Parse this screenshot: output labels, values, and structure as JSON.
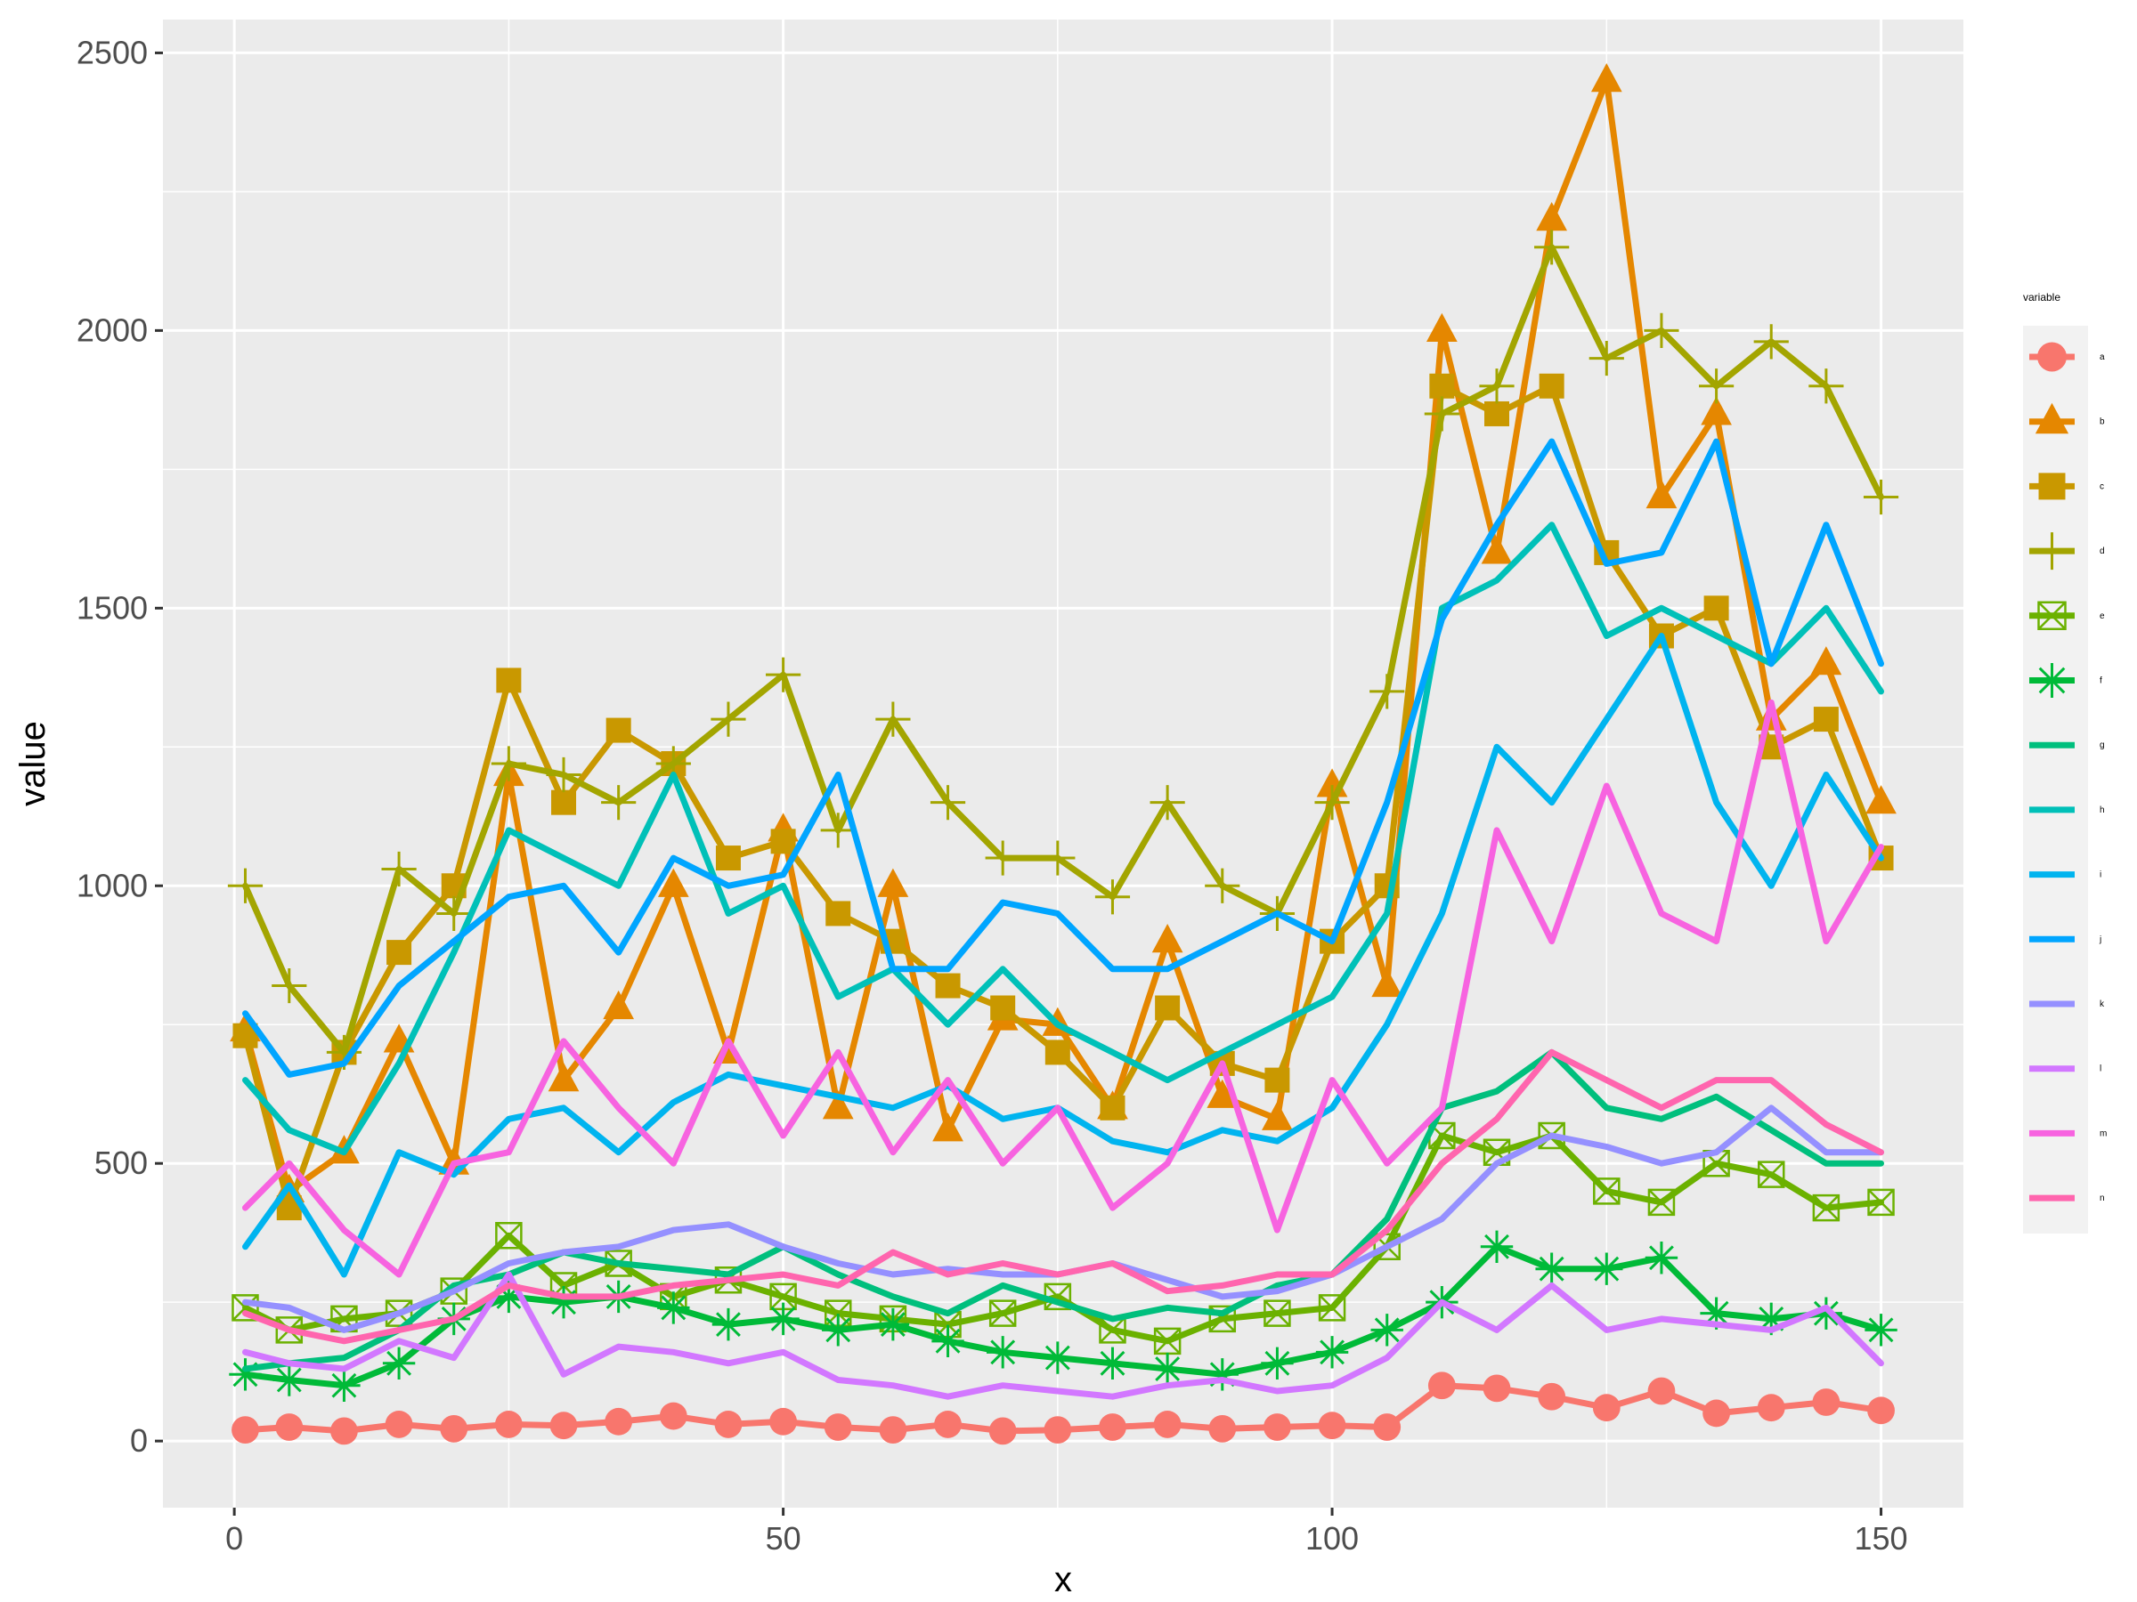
{
  "chart_data": {
    "type": "line",
    "xlabel": "x",
    "ylabel": "value",
    "xlim": [
      -6.5,
      157.5
    ],
    "ylim": [
      -120,
      2560
    ],
    "x_ticks": [
      0,
      50,
      100,
      150
    ],
    "y_ticks": [
      0,
      500,
      1000,
      1500,
      2000,
      2500
    ],
    "grid": true,
    "legend_title": "variable",
    "legend_position": "right",
    "x": [
      1,
      5,
      10,
      15,
      20,
      25,
      30,
      35,
      40,
      45,
      50,
      55,
      60,
      65,
      70,
      75,
      80,
      85,
      90,
      95,
      100,
      105,
      110,
      115,
      120,
      125,
      130,
      135,
      140,
      145,
      150
    ],
    "series": [
      {
        "name": "a",
        "color": "#F8766D",
        "marker": "circle",
        "values": [
          20,
          25,
          18,
          30,
          22,
          30,
          28,
          35,
          45,
          30,
          35,
          25,
          20,
          30,
          18,
          20,
          25,
          30,
          22,
          25,
          28,
          25,
          100,
          95,
          80,
          60,
          90,
          50,
          60,
          70,
          55
        ]
      },
      {
        "name": "b",
        "color": "#E58700",
        "marker": "triangle",
        "values": [
          740,
          450,
          520,
          720,
          500,
          1200,
          650,
          780,
          1000,
          700,
          1100,
          600,
          1000,
          560,
          760,
          750,
          600,
          900,
          620,
          580,
          1180,
          820,
          2000,
          1600,
          2200,
          2450,
          1700,
          1850,
          1300,
          1400,
          1150
        ]
      },
      {
        "name": "c",
        "color": "#C99800",
        "marker": "square",
        "values": [
          730,
          420,
          700,
          880,
          1000,
          1370,
          1150,
          1280,
          1220,
          1050,
          1080,
          950,
          900,
          820,
          780,
          700,
          600,
          780,
          680,
          650,
          900,
          1000,
          1900,
          1850,
          1900,
          1600,
          1450,
          1500,
          1250,
          1300,
          1050
        ]
      },
      {
        "name": "d",
        "color": "#A3A500",
        "marker": "plus",
        "values": [
          1000,
          820,
          700,
          1030,
          950,
          1220,
          1200,
          1150,
          1220,
          1300,
          1380,
          1100,
          1300,
          1150,
          1050,
          1050,
          980,
          1150,
          1000,
          950,
          1150,
          1350,
          1850,
          1900,
          2150,
          1950,
          2000,
          1900,
          1980,
          1900,
          1700
        ]
      },
      {
        "name": "e",
        "color": "#6BB100",
        "marker": "square-x",
        "values": [
          240,
          200,
          220,
          230,
          270,
          370,
          280,
          320,
          260,
          290,
          260,
          230,
          220,
          210,
          230,
          260,
          200,
          180,
          220,
          230,
          240,
          350,
          550,
          520,
          550,
          450,
          430,
          500,
          480,
          420,
          430
        ]
      },
      {
        "name": "f",
        "color": "#00BA38",
        "marker": "asterisk",
        "values": [
          120,
          110,
          100,
          140,
          220,
          260,
          250,
          260,
          240,
          210,
          220,
          200,
          210,
          180,
          160,
          150,
          140,
          130,
          120,
          140,
          160,
          200,
          250,
          350,
          310,
          310,
          330,
          230,
          220,
          230,
          200
        ]
      },
      {
        "name": "g",
        "color": "#00BF7D",
        "marker": "none",
        "values": [
          130,
          140,
          150,
          200,
          280,
          300,
          340,
          320,
          310,
          300,
          350,
          300,
          260,
          230,
          280,
          250,
          220,
          240,
          230,
          280,
          300,
          400,
          600,
          630,
          700,
          600,
          580,
          620,
          560,
          500,
          500
        ]
      },
      {
        "name": "h",
        "color": "#00C0B8",
        "marker": "none",
        "values": [
          650,
          560,
          520,
          680,
          880,
          1100,
          1050,
          1000,
          1200,
          950,
          1000,
          800,
          850,
          750,
          850,
          750,
          700,
          650,
          700,
          750,
          800,
          950,
          1500,
          1550,
          1650,
          1450,
          1500,
          1450,
          1400,
          1500,
          1350
        ]
      },
      {
        "name": "i",
        "color": "#00B4EF",
        "marker": "none",
        "values": [
          350,
          460,
          300,
          520,
          480,
          580,
          600,
          520,
          610,
          660,
          640,
          620,
          600,
          640,
          580,
          600,
          540,
          520,
          560,
          540,
          600,
          750,
          950,
          1250,
          1150,
          1300,
          1450,
          1150,
          1000,
          1200,
          1050
        ]
      },
      {
        "name": "j",
        "color": "#00A5FF",
        "marker": "none",
        "values": [
          770,
          660,
          680,
          820,
          900,
          980,
          1000,
          880,
          1050,
          1000,
          1020,
          1200,
          850,
          850,
          970,
          950,
          850,
          850,
          900,
          950,
          900,
          1150,
          1480,
          1650,
          1800,
          1580,
          1600,
          1800,
          1400,
          1650,
          1400
        ]
      },
      {
        "name": "k",
        "color": "#9590FF",
        "marker": "none",
        "values": [
          250,
          240,
          200,
          230,
          270,
          320,
          340,
          350,
          380,
          390,
          350,
          320,
          300,
          310,
          300,
          300,
          320,
          290,
          260,
          270,
          300,
          350,
          400,
          500,
          550,
          530,
          500,
          520,
          600,
          520,
          520
        ]
      },
      {
        "name": "l",
        "color": "#D277FF",
        "marker": "none",
        "values": [
          160,
          140,
          130,
          180,
          150,
          300,
          120,
          170,
          160,
          140,
          160,
          110,
          100,
          80,
          100,
          90,
          80,
          100,
          110,
          90,
          100,
          150,
          250,
          200,
          280,
          200,
          220,
          210,
          200,
          240,
          140
        ]
      },
      {
        "name": "m",
        "color": "#F763E0",
        "marker": "none",
        "values": [
          420,
          500,
          380,
          300,
          500,
          520,
          720,
          600,
          500,
          720,
          550,
          700,
          520,
          650,
          500,
          600,
          420,
          500,
          680,
          380,
          650,
          500,
          600,
          1100,
          900,
          1180,
          950,
          900,
          1330,
          900,
          1070
        ]
      },
      {
        "name": "n",
        "color": "#FF65AE",
        "marker": "none",
        "values": [
          230,
          200,
          180,
          200,
          220,
          280,
          260,
          260,
          280,
          290,
          300,
          280,
          340,
          300,
          320,
          300,
          320,
          270,
          280,
          300,
          300,
          380,
          500,
          580,
          700,
          650,
          600,
          650,
          650,
          570,
          520
        ]
      }
    ]
  }
}
